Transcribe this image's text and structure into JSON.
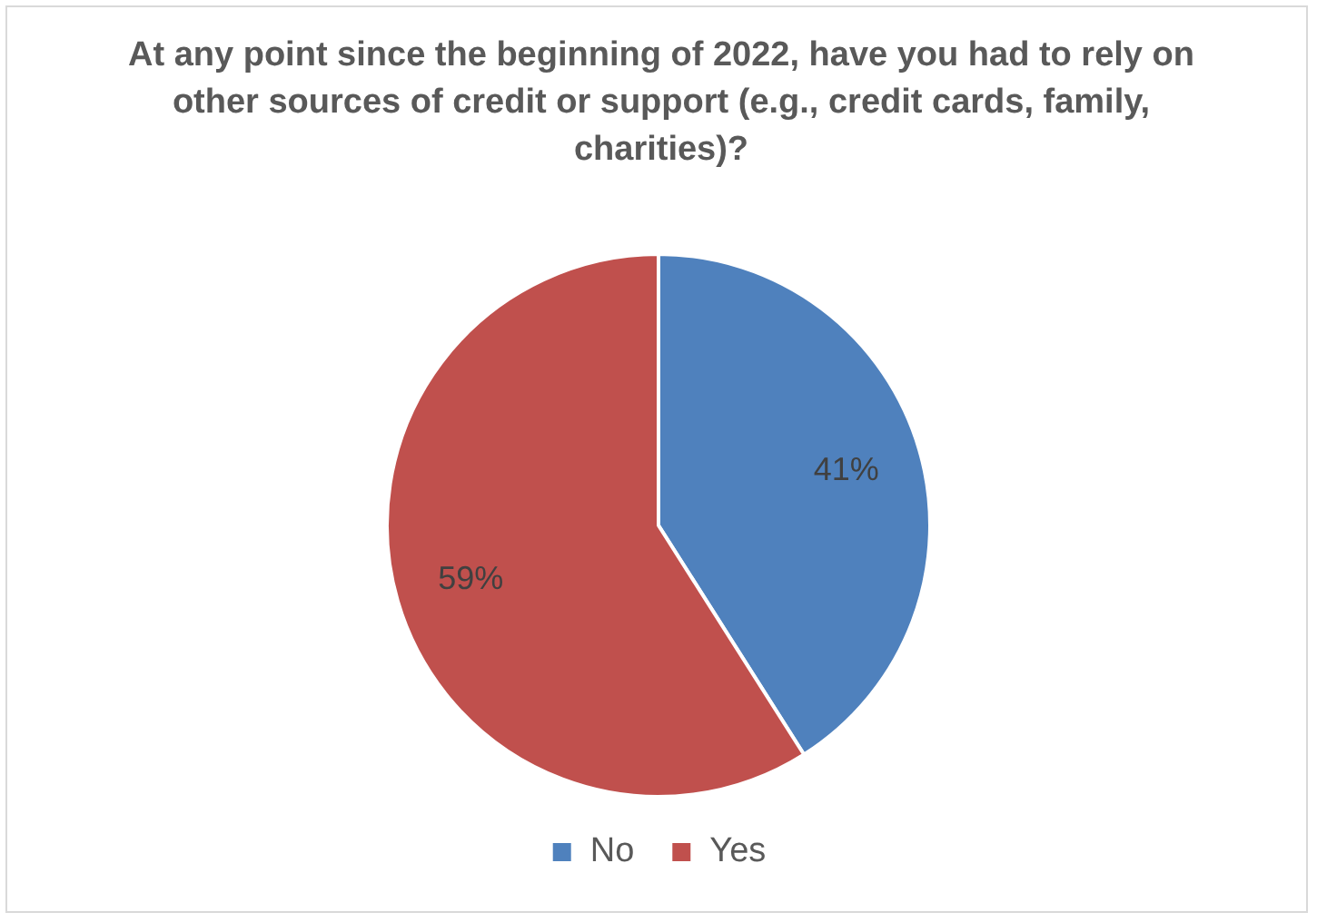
{
  "chart_data": {
    "type": "pie",
    "title": "At any point since the beginning of 2022, have you had to rely on other sources of credit or support (e.g., credit cards, family, charities)?",
    "categories": [
      "No",
      "Yes"
    ],
    "values": [
      41,
      59
    ],
    "colors": [
      "#4f81bd",
      "#c0504d"
    ],
    "value_labels": [
      "41%",
      "59%"
    ],
    "legend": "bottom"
  }
}
